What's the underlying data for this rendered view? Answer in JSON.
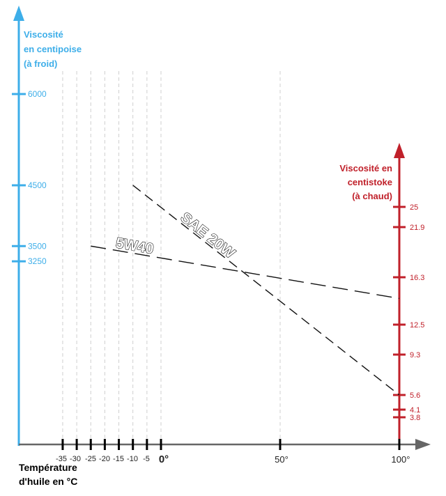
{
  "chart_data": {
    "type": "line",
    "left_axis": {
      "title_lines": [
        "Viscosité",
        "en centipoise",
        "(à froid)"
      ],
      "ticks": [
        6000,
        4500,
        3500,
        3250
      ],
      "color": "#3daee9"
    },
    "right_axis": {
      "title_lines": [
        "Viscosité en",
        "centistoke",
        "(à chaud)"
      ],
      "ticks": [
        25,
        21.9,
        16.3,
        12.5,
        9.3,
        5.6,
        4.1,
        3.8
      ],
      "color": "#c0202a"
    },
    "x_axis": {
      "title_lines": [
        "Température",
        "d'huile en °C"
      ],
      "small_ticks": [
        -35,
        -30,
        -25,
        -20,
        -15,
        -10,
        -5
      ],
      "big_ticks": [
        {
          "value": 0,
          "label": "0°"
        },
        {
          "value": 50,
          "label": "50°"
        },
        {
          "value": 100,
          "label": "100°"
        }
      ]
    },
    "series": [
      {
        "name": "SAE 20W",
        "from": {
          "temp": -10,
          "cp": 4500
        },
        "to": {
          "temp": 100,
          "cst": 5.6
        }
      },
      {
        "name": "5W40",
        "from": {
          "temp": -25,
          "cp": 3500
        },
        "to": {
          "temp": 100,
          "cst": 14.6
        }
      }
    ]
  }
}
